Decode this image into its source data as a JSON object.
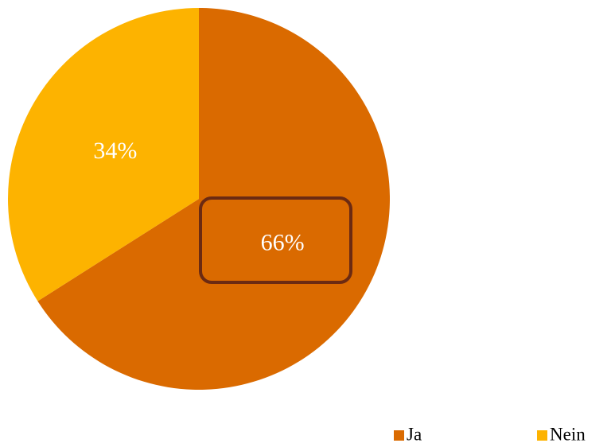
{
  "chart_data": {
    "type": "pie",
    "categories": [
      "Ja",
      "Nein"
    ],
    "values": [
      66,
      34
    ],
    "value_labels": [
      "66%",
      "34%"
    ],
    "colors": [
      "#da6a00",
      "#fdb300"
    ],
    "legend": "bottom"
  }
}
